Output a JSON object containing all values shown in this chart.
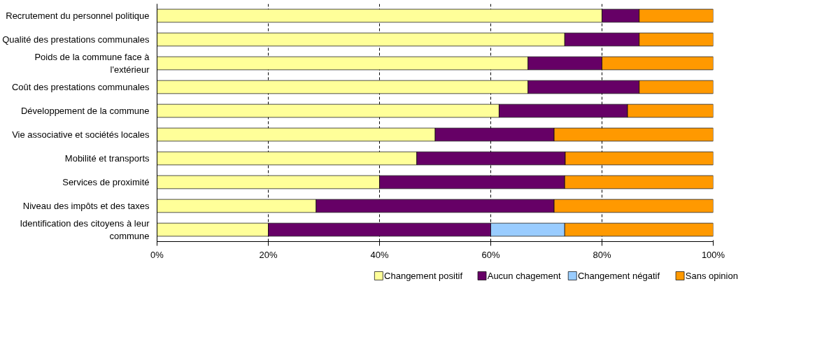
{
  "chart_data": {
    "type": "bar",
    "orientation": "horizontal",
    "stacked": true,
    "categories": [
      "Recrutement du personnel politique",
      "Qualité des prestations communales",
      "Poids de la commune face à l'extérieur",
      "Coût des prestations communales",
      "Développement de la commune",
      "Vie associative et sociétés locales",
      "Mobilité et transports",
      "Services de proximité",
      "Niveau des impôts et des taxes",
      "Identification des citoyens à leur commune"
    ],
    "series": [
      {
        "name": "Changement positif",
        "color": "#ffff99",
        "values": [
          80,
          73.3,
          66.7,
          66.7,
          61.5,
          50,
          46.7,
          40,
          28.6,
          20
        ]
      },
      {
        "name": "Aucun chagement",
        "color": "#660066",
        "values": [
          6.7,
          13.4,
          13.3,
          20,
          23.1,
          21.4,
          26.7,
          33.3,
          42.8,
          40
        ]
      },
      {
        "name": "Changement  négatif",
        "color": "#99ccff",
        "values": [
          null,
          null,
          null,
          null,
          null,
          null,
          null,
          null,
          null,
          13.3
        ]
      },
      {
        "name": "Sans opinion",
        "color": "#ff9900",
        "values": [
          13.3,
          13.3,
          20,
          13.3,
          15.4,
          28.6,
          26.6,
          26.7,
          28.6,
          26.7
        ]
      }
    ],
    "xlim": [
      0,
      100
    ],
    "xticks": [
      {
        "value": 0,
        "label": "0%"
      },
      {
        "value": 20,
        "label": "20%"
      },
      {
        "value": 40,
        "label": "40%"
      },
      {
        "value": 60,
        "label": "60%"
      },
      {
        "value": 80,
        "label": "80%"
      },
      {
        "value": 100,
        "label": "100%"
      }
    ],
    "grid": "x",
    "legend": "bottom"
  }
}
